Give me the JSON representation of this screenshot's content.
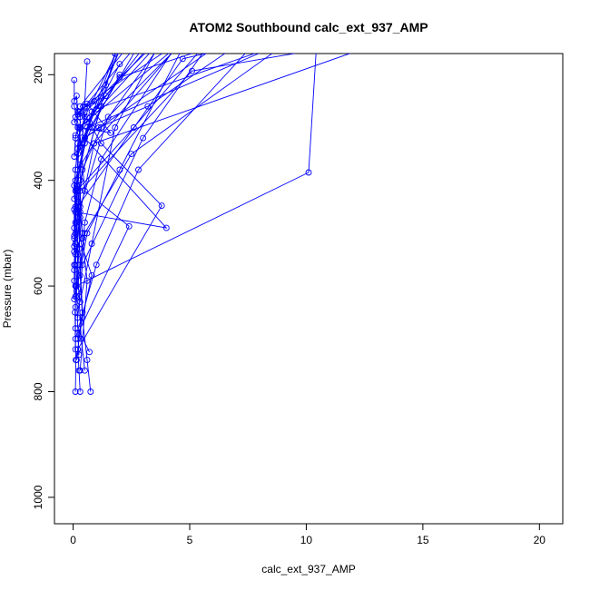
{
  "chart_data": {
    "type": "line",
    "title": "ATOM2 Southbound calc_ext_937_AMP",
    "xlabel": "calc_ext_937_AMP",
    "ylabel": "Pressure (mbar)",
    "xlim": [
      -0.8,
      21.0
    ],
    "ylim": [
      1050,
      160
    ],
    "y_reversed": true,
    "grid": false,
    "legend": "none",
    "x_ticks": [
      0,
      5,
      10,
      15,
      20
    ],
    "y_ticks": [
      200,
      400,
      600,
      800,
      1000
    ],
    "color": "#0000ff",
    "marker": "open-circle",
    "series": [
      {
        "x": [
          0.1,
          0.12,
          0.08,
          0.2,
          0.15,
          2.6,
          6.5
        ],
        "y": [
          800,
          740,
          650,
          540,
          420,
          300,
          100
        ]
      },
      {
        "x": [
          0.3,
          0.25,
          0.2,
          0.4,
          0.3,
          0.2,
          1.8,
          3.5
        ],
        "y": [
          800,
          760,
          720,
          650,
          560,
          420,
          160,
          80
        ]
      },
      {
        "x": [
          0.75,
          0.6,
          0.4,
          0.3,
          0.5,
          1.2,
          4.5
        ],
        "y": [
          800,
          740,
          660,
          580,
          480,
          360,
          140
        ]
      },
      {
        "x": [
          0.5,
          0.35,
          0.25,
          0.2,
          0.15,
          0.3,
          0.6
        ],
        "y": [
          760,
          700,
          620,
          560,
          480,
          400,
          175
        ]
      },
      {
        "x": [
          0.7,
          0.2,
          0.15,
          0.25,
          0.3,
          0.9,
          5.0
        ],
        "y": [
          725,
          680,
          610,
          530,
          460,
          330,
          120
        ]
      },
      {
        "x": [
          0.15,
          0.2,
          3.8,
          1.2,
          0.3,
          3.0
        ],
        "y": [
          740,
          720,
          448,
          330,
          260,
          110
        ]
      },
      {
        "x": [
          0.25,
          0.2,
          2.4,
          0.5,
          0.25,
          6.0
        ],
        "y": [
          730,
          690,
          487,
          420,
          300,
          90
        ]
      },
      {
        "x": [
          0.1,
          0.1,
          0.12,
          10.1,
          10.5
        ],
        "y": [
          720,
          640,
          600,
          385,
          100
        ]
      },
      {
        "x": [
          0.2,
          0.8,
          0.35,
          0.2,
          0.2,
          3.0
        ],
        "y": [
          700,
          580,
          520,
          420,
          340,
          130
        ]
      },
      {
        "x": [
          0.1,
          0.1,
          0.1,
          0.2,
          4.7,
          9.5
        ],
        "y": [
          680,
          600,
          520,
          450,
          170,
          120
        ]
      },
      {
        "x": [
          0.3,
          0.6,
          0.4,
          0.3,
          5.1,
          10.8
        ],
        "y": [
          760,
          590,
          510,
          420,
          193,
          150
        ]
      },
      {
        "x": [
          0.05,
          0.05,
          0.1,
          0.15,
          0.8,
          4.0
        ],
        "y": [
          625,
          560,
          500,
          410,
          270,
          110
        ]
      },
      {
        "x": [
          0.05,
          0.1,
          0.4,
          0.2,
          0.2,
          2.0
        ],
        "y": [
          590,
          540,
          500,
          440,
          350,
          150
        ]
      },
      {
        "x": [
          0.05,
          0.15,
          0.3,
          0.3,
          1.2,
          4.5
        ],
        "y": [
          570,
          530,
          470,
          400,
          260,
          100
        ]
      },
      {
        "x": [
          0.05,
          0.05,
          0.1,
          4.0,
          0.5,
          7.0
        ],
        "y": [
          535,
          510,
          460,
          490,
          320,
          120
        ]
      },
      {
        "x": [
          0.05,
          0.1,
          0.1,
          0.6,
          9.0
        ],
        "y": [
          525,
          480,
          420,
          300,
          140
        ]
      },
      {
        "x": [
          0.05,
          0.05,
          0.2,
          0.9,
          12.5
        ],
        "y": [
          505,
          455,
          380,
          330,
          150
        ]
      },
      {
        "x": [
          0.05,
          0.1,
          0.5,
          0.8,
          2.0
        ],
        "y": [
          490,
          400,
          330,
          300,
          200
        ]
      },
      {
        "x": [
          0.05,
          0.1,
          0.3,
          0.5,
          2.5
        ],
        "y": [
          435,
          380,
          310,
          280,
          100
        ]
      },
      {
        "x": [
          0.05,
          0.2,
          0.3,
          0.3,
          3.2
        ],
        "y": [
          410,
          330,
          300,
          270,
          120
        ]
      },
      {
        "x": [
          0.15,
          0.3,
          1.6,
          0.6,
          5.5
        ],
        "y": [
          416,
          300,
          310,
          255,
          110
        ]
      },
      {
        "x": [
          0.05,
          0.1,
          0.2,
          0.6,
          2.0,
          8.5
        ],
        "y": [
          355,
          320,
          300,
          290,
          205,
          110
        ]
      },
      {
        "x": [
          0.05,
          0.1,
          0.25,
          0.5,
          1.4,
          3.0
        ],
        "y": [
          290,
          280,
          270,
          262,
          240,
          150
        ]
      },
      {
        "x": [
          0.05,
          0.15,
          0.2,
          0.3,
          4.0
        ],
        "y": [
          250,
          240,
          270,
          280,
          120
        ]
      },
      {
        "x": [
          0.05,
          0.05,
          0.2,
          0.35,
          1.8
        ],
        "y": [
          210,
          260,
          290,
          330,
          160
        ]
      },
      {
        "x": [
          0.1,
          0.3,
          0.6,
          1.0,
          11.0
        ],
        "y": [
          315,
          300,
          280,
          265,
          110
        ]
      },
      {
        "x": [
          0.3,
          0.5,
          1.1,
          3.2,
          7.5
        ],
        "y": [
          335,
          320,
          300,
          260,
          130
        ]
      },
      {
        "x": [
          0.2,
          0.5,
          0.9,
          1.4,
          2.2
        ],
        "y": [
          275,
          260,
          250,
          220,
          130
        ]
      },
      {
        "x": [
          0.1,
          0.6,
          2.0,
          4.8
        ],
        "y": [
          620,
          500,
          380,
          140
        ]
      },
      {
        "x": [
          0.2,
          0.4,
          3.0,
          6.5
        ],
        "y": [
          660,
          560,
          320,
          100
        ]
      },
      {
        "x": [
          0.15,
          0.5,
          2.5,
          9.8
        ],
        "y": [
          600,
          500,
          350,
          120
        ]
      },
      {
        "x": [
          0.1,
          0.3,
          1.5,
          5.8
        ],
        "y": [
          560,
          450,
          280,
          90
        ]
      },
      {
        "x": [
          0.3,
          0.8,
          1.8,
          4.2
        ],
        "y": [
          630,
          520,
          300,
          100
        ]
      },
      {
        "x": [
          0.1,
          1.0,
          2.8,
          8.0
        ],
        "y": [
          700,
          560,
          380,
          130
        ]
      },
      {
        "x": [
          0.2,
          0.4,
          1.2,
          3.8
        ],
        "y": [
          470,
          380,
          300,
          140
        ]
      },
      {
        "x": [
          0.1,
          0.3,
          0.7,
          2.0
        ],
        "y": [
          450,
          370,
          290,
          180
        ]
      }
    ]
  }
}
